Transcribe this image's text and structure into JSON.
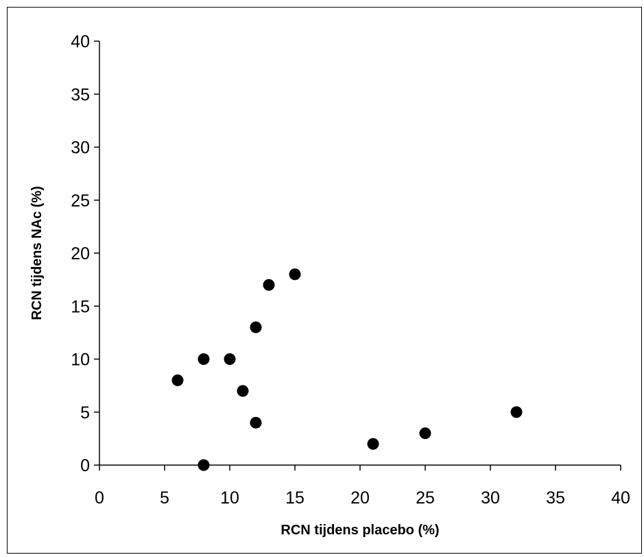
{
  "chart_data": {
    "type": "scatter",
    "title": "",
    "xlabel": "RCN tijdens placebo (%)",
    "ylabel": "RCN tijdens NAc (%)",
    "xlim": [
      0,
      40
    ],
    "ylim": [
      0,
      40
    ],
    "xticks": [
      "0",
      "5",
      "10",
      "15",
      "20",
      "25",
      "30",
      "35",
      "40"
    ],
    "yticks": [
      "0",
      "5",
      "10",
      "15",
      "20",
      "25",
      "30",
      "35",
      "40"
    ],
    "grid": false,
    "legend": "none",
    "marker_color": "#000000",
    "points": [
      {
        "x": 6,
        "y": 8
      },
      {
        "x": 8,
        "y": 10
      },
      {
        "x": 8,
        "y": 0
      },
      {
        "x": 10,
        "y": 10
      },
      {
        "x": 11,
        "y": 7
      },
      {
        "x": 12,
        "y": 13
      },
      {
        "x": 12,
        "y": 4
      },
      {
        "x": 13,
        "y": 17
      },
      {
        "x": 15,
        "y": 18
      },
      {
        "x": 21,
        "y": 2
      },
      {
        "x": 25,
        "y": 3
      },
      {
        "x": 32,
        "y": 5
      }
    ]
  }
}
